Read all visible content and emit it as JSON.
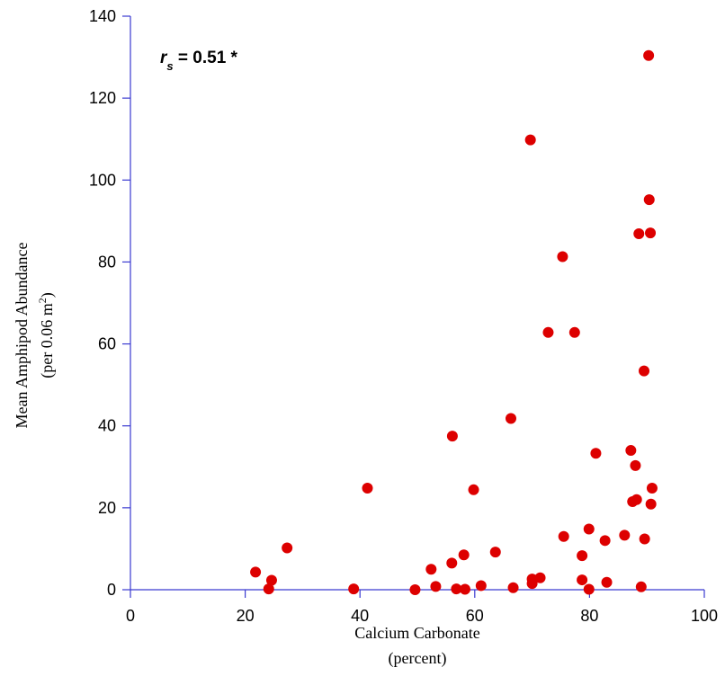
{
  "chart_data": {
    "type": "scatter",
    "title": "",
    "xlabel": "Calcium Carbonate",
    "xlabel_sub": "(percent)",
    "ylabel": "Mean Amphipod Abundance",
    "ylabel_sub": "(per 0.06 m",
    "ylabel_sup": "2",
    "ylabel_close": ")",
    "xlim": [
      0,
      100
    ],
    "ylim": [
      0,
      140
    ],
    "xticks": [
      0,
      20,
      40,
      60,
      80,
      100
    ],
    "yticks": [
      0,
      20,
      40,
      60,
      80,
      100,
      120,
      140
    ],
    "grid": false,
    "annotation": {
      "r": "r",
      "sub": "s",
      "text": " = 0.51 *"
    },
    "colors": {
      "axis": "#3a3ad0",
      "point": "#dd0000"
    },
    "points": [
      [
        21.8,
        4.3
      ],
      [
        24.1,
        0.2
      ],
      [
        24.6,
        2.3
      ],
      [
        27.3,
        10.2
      ],
      [
        38.9,
        0.2
      ],
      [
        41.3,
        24.8
      ],
      [
        49.6,
        0.0
      ],
      [
        52.4,
        5.0
      ],
      [
        53.2,
        0.8
      ],
      [
        56.1,
        37.5
      ],
      [
        56.0,
        6.5
      ],
      [
        56.8,
        0.2
      ],
      [
        58.1,
        8.5
      ],
      [
        58.3,
        0.1
      ],
      [
        59.8,
        24.4
      ],
      [
        61.1,
        1.0
      ],
      [
        63.6,
        9.2
      ],
      [
        66.3,
        41.8
      ],
      [
        66.7,
        0.5
      ],
      [
        69.7,
        109.8
      ],
      [
        70.0,
        2.6
      ],
      [
        70.0,
        1.5
      ],
      [
        71.4,
        2.9
      ],
      [
        72.8,
        62.8
      ],
      [
        75.3,
        81.3
      ],
      [
        75.5,
        13.0
      ],
      [
        77.4,
        62.8
      ],
      [
        78.7,
        8.3
      ],
      [
        78.7,
        2.4
      ],
      [
        79.9,
        14.8
      ],
      [
        79.9,
        0.1
      ],
      [
        81.1,
        33.3
      ],
      [
        82.7,
        12.0
      ],
      [
        83.0,
        1.8
      ],
      [
        86.1,
        13.3
      ],
      [
        87.2,
        34.0
      ],
      [
        87.5,
        21.5
      ],
      [
        88.0,
        30.3
      ],
      [
        88.2,
        22.0
      ],
      [
        88.6,
        86.9
      ],
      [
        89.0,
        0.7
      ],
      [
        89.5,
        53.4
      ],
      [
        89.6,
        12.4
      ],
      [
        90.3,
        130.4
      ],
      [
        90.4,
        95.2
      ],
      [
        90.6,
        87.1
      ],
      [
        90.7,
        20.9
      ],
      [
        90.9,
        24.8
      ]
    ]
  }
}
